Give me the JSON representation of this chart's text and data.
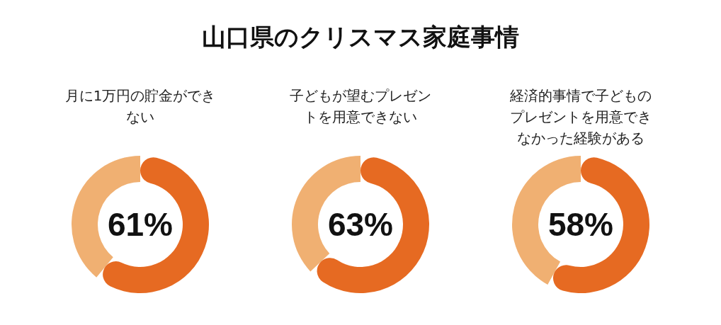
{
  "chart_data": [
    {
      "type": "other",
      "title": "山口県のクリスマス家庭事情"
    },
    {
      "type": "donut",
      "title": "月に1万円の貯金ができない",
      "categories": [
        null,
        null
      ],
      "values": [
        61,
        39
      ],
      "colors": [
        "#e66a22",
        "#f0b072"
      ],
      "annotations": [
        "61%"
      ]
    },
    {
      "type": "donut",
      "title": "子どもが望むプレゼントを用意できない",
      "categories": [
        null,
        null
      ],
      "values": [
        63,
        37
      ],
      "colors": [
        "#e66a22",
        "#f0b072"
      ],
      "annotations": [
        "63%"
      ]
    },
    {
      "type": "donut",
      "title": "経済的事情で子どものプレゼントを用意できなかった経験がある",
      "categories": [
        null,
        null
      ],
      "values": [
        58,
        42
      ],
      "colors": [
        "#e66a22",
        "#f0b072"
      ],
      "annotations": [
        "58%"
      ]
    }
  ]
}
